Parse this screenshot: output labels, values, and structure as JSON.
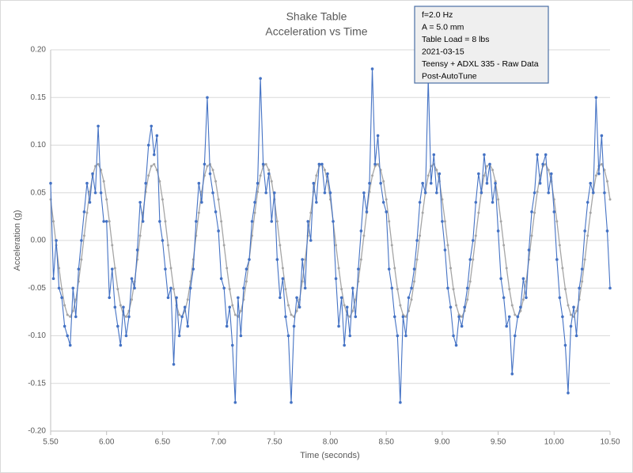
{
  "chart_data": {
    "type": "line",
    "title": [
      "Shake Table",
      "Acceleration vs Time"
    ],
    "xlabel": "Time (seconds)",
    "ylabel": "Acceleration (g)",
    "annotation": [
      "f=2.0 Hz",
      "A = 5.0 mm",
      "Table Load = 8 lbs",
      "2021-03-15",
      "Teensy + ADXL 335 - Raw Data",
      "Post-AutoTune"
    ],
    "xlim": [
      5.5,
      10.5
    ],
    "ylim": [
      -0.2,
      0.2
    ],
    "xticks": [
      {
        "value": 5.5,
        "label": "5.50"
      },
      {
        "value": 6,
        "label": "6.00"
      },
      {
        "value": 6.5,
        "label": "6.50"
      },
      {
        "value": 7,
        "label": "7.00"
      },
      {
        "value": 7.5,
        "label": "7.50"
      },
      {
        "value": 8,
        "label": "8.00"
      },
      {
        "value": 8.5,
        "label": "8.50"
      },
      {
        "value": 9,
        "label": "9.00"
      },
      {
        "value": 9.5,
        "label": "9.50"
      },
      {
        "value": 10,
        "label": "10.00"
      },
      {
        "value": 10.5,
        "label": "10.50"
      }
    ],
    "yticks": [
      {
        "value": -0.2,
        "label": "-0.20"
      },
      -0.15,
      {
        "value": -0.1,
        "label": "-0.10"
      },
      -0.05,
      {
        "value": 0,
        "label": "0.00"
      },
      0.05,
      {
        "value": 0.1,
        "label": "0.10"
      },
      0.15,
      {
        "value": 0.2,
        "label": "0.20"
      }
    ],
    "grid": true,
    "x": [
      5.5,
      5.525,
      5.55,
      5.575,
      5.6,
      5.625,
      5.65,
      5.675,
      5.7,
      5.725,
      5.75,
      5.775,
      5.8,
      5.825,
      5.85,
      5.875,
      5.9,
      5.925,
      5.95,
      5.975,
      6.0,
      6.025,
      6.05,
      6.075,
      6.1,
      6.125,
      6.15,
      6.175,
      6.2,
      6.225,
      6.25,
      6.275,
      6.3,
      6.325,
      6.35,
      6.375,
      6.4,
      6.425,
      6.45,
      6.475,
      6.5,
      6.525,
      6.55,
      6.575,
      6.6,
      6.625,
      6.65,
      6.675,
      6.7,
      6.725,
      6.75,
      6.775,
      6.8,
      6.825,
      6.85,
      6.875,
      6.9,
      6.925,
      6.95,
      6.975,
      7.0,
      7.025,
      7.05,
      7.075,
      7.1,
      7.125,
      7.15,
      7.175,
      7.2,
      7.225,
      7.25,
      7.275,
      7.3,
      7.325,
      7.35,
      7.375,
      7.4,
      7.425,
      7.45,
      7.475,
      7.5,
      7.525,
      7.55,
      7.575,
      7.6,
      7.625,
      7.65,
      7.675,
      7.7,
      7.725,
      7.75,
      7.775,
      7.8,
      7.825,
      7.85,
      7.875,
      7.9,
      7.925,
      7.95,
      7.975,
      8.0,
      8.025,
      8.05,
      8.075,
      8.1,
      8.125,
      8.15,
      8.175,
      8.2,
      8.225,
      8.25,
      8.275,
      8.3,
      8.325,
      8.35,
      8.375,
      8.4,
      8.425,
      8.45,
      8.475,
      8.5,
      8.525,
      8.55,
      8.575,
      8.6,
      8.625,
      8.65,
      8.675,
      8.7,
      8.725,
      8.75,
      8.775,
      8.8,
      8.825,
      8.85,
      8.875,
      8.9,
      8.925,
      8.95,
      8.975,
      9.0,
      9.025,
      9.05,
      9.075,
      9.1,
      9.125,
      9.15,
      9.175,
      9.2,
      9.225,
      9.25,
      9.275,
      9.3,
      9.325,
      9.35,
      9.375,
      9.4,
      9.425,
      9.45,
      9.475,
      9.5,
      9.525,
      9.55,
      9.575,
      9.6,
      9.625,
      9.65,
      9.675,
      9.7,
      9.725,
      9.75,
      9.775,
      9.8,
      9.825,
      9.85,
      9.875,
      9.9,
      9.925,
      9.95,
      9.975,
      10.0,
      10.025,
      10.05,
      10.075,
      10.1,
      10.125,
      10.15,
      10.175,
      10.2,
      10.225,
      10.25,
      10.275,
      10.3,
      10.325,
      10.35,
      10.375,
      10.4,
      10.425,
      10.45,
      10.475,
      10.5
    ],
    "series": [
      {
        "color": "#a5a5a5",
        "values": [
          0.043,
          0.02,
          -0.005,
          -0.029,
          -0.051,
          -0.068,
          -0.078,
          -0.08,
          -0.074,
          -0.062,
          -0.043,
          -0.02,
          0.005,
          0.029,
          0.051,
          0.068,
          0.078,
          0.08,
          0.074,
          0.062,
          0.043,
          0.02,
          -0.005,
          -0.029,
          -0.051,
          -0.068,
          -0.078,
          -0.08,
          -0.074,
          -0.062,
          -0.043,
          -0.02,
          0.005,
          0.029,
          0.051,
          0.068,
          0.078,
          0.08,
          0.074,
          0.062,
          0.043,
          0.02,
          -0.005,
          -0.029,
          -0.051,
          -0.068,
          -0.078,
          -0.08,
          -0.074,
          -0.062,
          -0.043,
          -0.02,
          0.005,
          0.029,
          0.051,
          0.068,
          0.078,
          0.08,
          0.074,
          0.062,
          0.043,
          0.02,
          -0.005,
          -0.029,
          -0.051,
          -0.068,
          -0.078,
          -0.08,
          -0.074,
          -0.062,
          -0.043,
          -0.02,
          0.005,
          0.029,
          0.051,
          0.068,
          0.078,
          0.08,
          0.074,
          0.062,
          0.043,
          0.02,
          -0.005,
          -0.029,
          -0.051,
          -0.068,
          -0.078,
          -0.08,
          -0.074,
          -0.062,
          -0.043,
          -0.02,
          0.005,
          0.029,
          0.051,
          0.068,
          0.078,
          0.08,
          0.074,
          0.062,
          0.043,
          0.02,
          -0.005,
          -0.029,
          -0.051,
          -0.068,
          -0.078,
          -0.08,
          -0.074,
          -0.062,
          -0.043,
          -0.02,
          0.005,
          0.029,
          0.051,
          0.068,
          0.078,
          0.08,
          0.074,
          0.062,
          0.043,
          0.02,
          -0.005,
          -0.029,
          -0.051,
          -0.068,
          -0.078,
          -0.08,
          -0.074,
          -0.062,
          -0.043,
          -0.02,
          0.005,
          0.029,
          0.051,
          0.068,
          0.078,
          0.08,
          0.074,
          0.062,
          0.043,
          0.02,
          -0.005,
          -0.029,
          -0.051,
          -0.068,
          -0.078,
          -0.08,
          -0.074,
          -0.062,
          -0.043,
          -0.02,
          0.005,
          0.029,
          0.051,
          0.068,
          0.078,
          0.08,
          0.074,
          0.062,
          0.043,
          0.02,
          -0.005,
          -0.029,
          -0.051,
          -0.068,
          -0.078,
          -0.08,
          -0.074,
          -0.062,
          -0.043,
          -0.02,
          0.005,
          0.029,
          0.051,
          0.068,
          0.078,
          0.08,
          0.074,
          0.062,
          0.043,
          0.02,
          -0.005,
          -0.029,
          -0.051,
          -0.068,
          -0.078,
          -0.08,
          -0.074,
          -0.062,
          -0.043,
          -0.02,
          0.005,
          0.029,
          0.051,
          0.068,
          0.078,
          0.08,
          0.074,
          0.062,
          0.043
        ]
      },
      {
        "color": "#4472c4",
        "values": [
          0.06,
          -0.04,
          0.0,
          -0.05,
          -0.06,
          -0.09,
          -0.1,
          -0.11,
          -0.05,
          -0.08,
          -0.03,
          0.0,
          0.03,
          0.06,
          0.04,
          0.07,
          0.05,
          0.12,
          0.05,
          0.02,
          0.02,
          -0.06,
          -0.03,
          -0.07,
          -0.09,
          -0.11,
          -0.07,
          -0.1,
          -0.08,
          -0.04,
          -0.05,
          -0.01,
          0.04,
          0.02,
          0.06,
          0.1,
          0.12,
          0.09,
          0.11,
          0.02,
          0.0,
          -0.03,
          -0.06,
          -0.05,
          -0.13,
          -0.06,
          -0.1,
          -0.08,
          -0.07,
          -0.09,
          -0.05,
          -0.03,
          0.02,
          0.06,
          0.04,
          0.08,
          0.15,
          0.07,
          0.05,
          0.03,
          0.01,
          -0.04,
          -0.05,
          -0.09,
          -0.07,
          -0.11,
          -0.17,
          -0.06,
          -0.1,
          -0.05,
          -0.03,
          -0.02,
          0.02,
          0.04,
          0.06,
          0.17,
          0.08,
          0.05,
          0.07,
          0.02,
          0.05,
          -0.02,
          -0.06,
          -0.04,
          -0.08,
          -0.1,
          -0.17,
          -0.09,
          -0.06,
          -0.07,
          -0.02,
          -0.05,
          0.02,
          0.0,
          0.06,
          0.04,
          0.08,
          0.08,
          0.05,
          0.07,
          0.05,
          0.02,
          -0.04,
          -0.09,
          -0.06,
          -0.11,
          -0.07,
          -0.1,
          -0.05,
          -0.08,
          -0.03,
          0.01,
          0.05,
          0.03,
          0.06,
          0.18,
          0.08,
          0.11,
          0.06,
          0.04,
          0.03,
          -0.03,
          -0.05,
          -0.08,
          -0.1,
          -0.17,
          -0.08,
          -0.1,
          -0.06,
          -0.05,
          -0.03,
          0.0,
          0.04,
          0.06,
          0.05,
          0.17,
          0.06,
          0.09,
          0.05,
          0.07,
          0.02,
          -0.01,
          -0.05,
          -0.07,
          -0.1,
          -0.11,
          -0.08,
          -0.09,
          -0.07,
          -0.05,
          -0.02,
          0.0,
          0.04,
          0.07,
          0.05,
          0.09,
          0.06,
          0.08,
          0.04,
          0.06,
          0.01,
          -0.04,
          -0.06,
          -0.09,
          -0.08,
          -0.14,
          -0.1,
          -0.08,
          -0.07,
          -0.04,
          -0.06,
          -0.01,
          0.03,
          0.05,
          0.09,
          0.06,
          0.08,
          0.09,
          0.05,
          0.07,
          0.03,
          -0.02,
          -0.06,
          -0.08,
          -0.11,
          -0.16,
          -0.09,
          -0.07,
          -0.1,
          -0.05,
          -0.03,
          0.01,
          0.04,
          0.06,
          0.05,
          0.15,
          0.07,
          0.11,
          0.05,
          0.01,
          -0.05
        ]
      }
    ]
  }
}
